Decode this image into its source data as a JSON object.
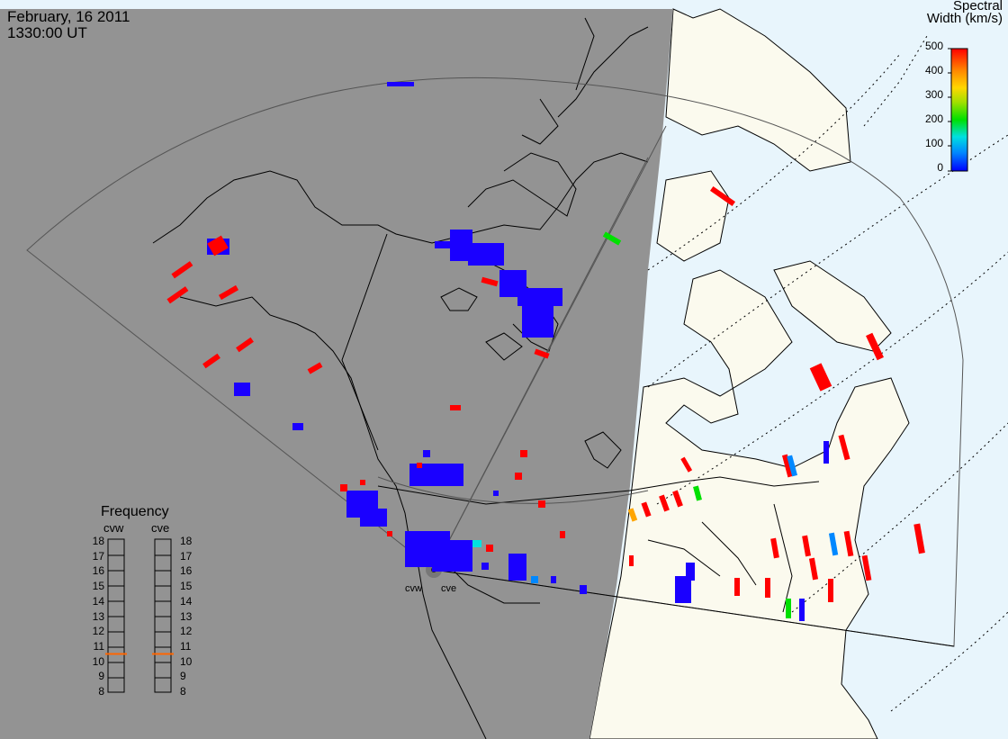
{
  "header": {
    "date": "February, 16 2011",
    "time": "1330:00 UT"
  },
  "colorbar": {
    "title_line1": "Spectral",
    "title_line2": "Width (km/s)",
    "ticks": [
      "500",
      "400",
      "300",
      "200",
      "100",
      "0"
    ],
    "min": 0,
    "max": 500,
    "colors": [
      "#0000ff",
      "#0088ff",
      "#00e0e0",
      "#00e000",
      "#a0e000",
      "#ffd700",
      "#ff8800",
      "#ff0000"
    ]
  },
  "frequency": {
    "title": "Frequency",
    "radar1": "cvw",
    "radar2": "cve",
    "levels": [
      "18",
      "17",
      "16",
      "15",
      "14",
      "13",
      "12",
      "11",
      "10",
      "9",
      "8"
    ],
    "cvw_value": 10.5,
    "cve_value": 10.5,
    "indicator_color": "#ff6600"
  },
  "radars": [
    {
      "code": "cvw"
    },
    {
      "code": "cve"
    }
  ],
  "colors": {
    "night": "#939393",
    "land_day": "#fbfaee",
    "ocean_day": "#e8f5fc",
    "echo_blue": "#1a00ff",
    "echo_red": "#ff0000"
  }
}
